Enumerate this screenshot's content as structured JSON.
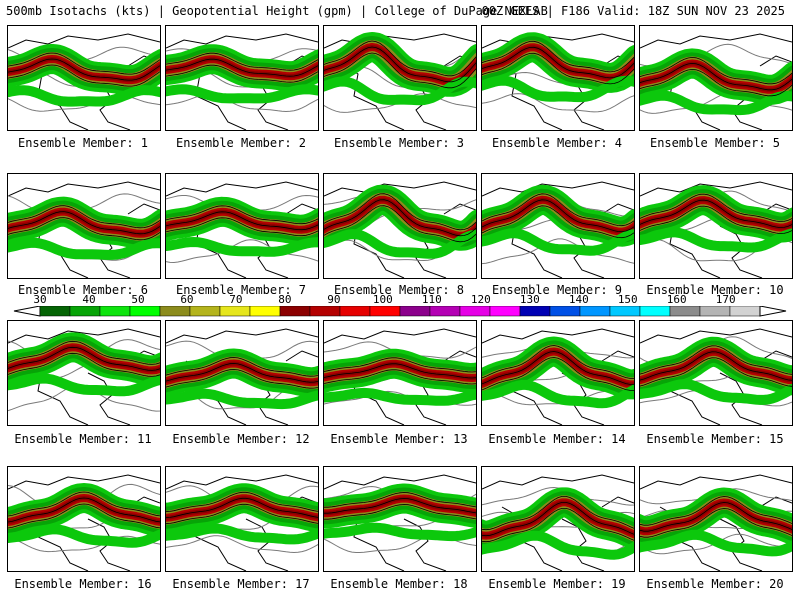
{
  "header": {
    "left": "500mb Isotachs (kts) | Geopotential Height (gpm) | College of DuPage NEXLAB",
    "right": "00Z GEFS | F186 Valid: 18Z SUN NOV 23 2025"
  },
  "colorbar": {
    "labels": [
      "30",
      "40",
      "50",
      "60",
      "70",
      "80",
      "90",
      "100",
      "110",
      "120",
      "130",
      "140",
      "150",
      "160",
      "170"
    ],
    "colors": [
      "#046404",
      "#07a407",
      "#0de40d",
      "#00ff00",
      "#8c8c1c",
      "#b4b41c",
      "#e6e61c",
      "#ffff00",
      "#8c0000",
      "#b40000",
      "#e60000",
      "#ff0000",
      "#8c008c",
      "#b400b4",
      "#e600e6",
      "#ff00ff",
      "#0000b4",
      "#0050e6",
      "#0096ff",
      "#00c8ff",
      "#00ffff",
      "#8c8c8c",
      "#b4b4b4",
      "#d2d2d2"
    ]
  },
  "members": [
    {
      "label": "Ensemble Member: 1"
    },
    {
      "label": "Ensemble Member: 2"
    },
    {
      "label": "Ensemble Member: 3"
    },
    {
      "label": "Ensemble Member: 4"
    },
    {
      "label": "Ensemble Member: 5"
    },
    {
      "label": "Ensemble Member: 6"
    },
    {
      "label": "Ensemble Member: 7"
    },
    {
      "label": "Ensemble Member: 8"
    },
    {
      "label": "Ensemble Member: 9"
    },
    {
      "label": "Ensemble Member: 10"
    },
    {
      "label": "Ensemble Member: 11"
    },
    {
      "label": "Ensemble Member: 12"
    },
    {
      "label": "Ensemble Member: 13"
    },
    {
      "label": "Ensemble Member: 14"
    },
    {
      "label": "Ensemble Member: 15"
    },
    {
      "label": "Ensemble Member: 16"
    },
    {
      "label": "Ensemble Member: 17"
    },
    {
      "label": "Ensemble Member: 18"
    },
    {
      "label": "Ensemble Member: 19"
    },
    {
      "label": "Ensemble Member: 20"
    }
  ]
}
